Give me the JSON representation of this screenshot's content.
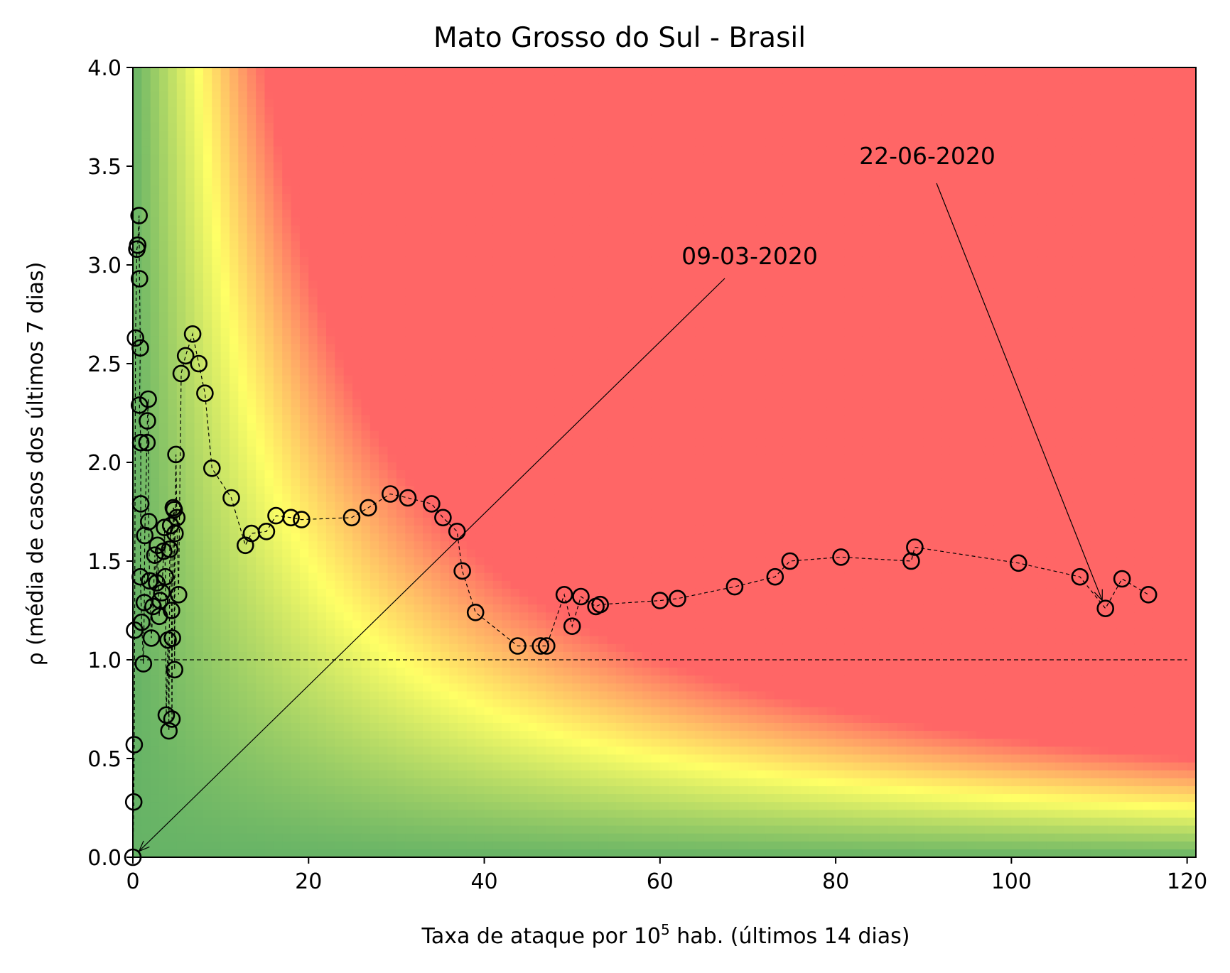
{
  "chart_data": {
    "type": "scatter",
    "title": "Mato Grosso do Sul - Brasil",
    "xlabel_main": "Taxa de ataque por 10",
    "xlabel_exp": "5",
    "xlabel_rest": " hab. (últimos 14 dias)",
    "ylabel": "ρ (média de casos dos últimos 7 dias)",
    "xlim": [
      0,
      121
    ],
    "ylim": [
      0,
      4.0
    ],
    "x_ticks": [
      0,
      20,
      40,
      60,
      80,
      100,
      120
    ],
    "y_ticks": [
      "0.0",
      "0.5",
      "1.0",
      "1.5",
      "2.0",
      "2.5",
      "3.0",
      "3.5",
      "4.0"
    ],
    "reference_line": {
      "y": 1.0,
      "x_range": [
        0,
        120
      ],
      "style": "dashed"
    },
    "background": "risk gradient: green (low) → yellow → red (high risk), by x·ρ",
    "colors": {
      "green": "#66b366",
      "yellow": "#ffff66",
      "red": "#ff6666",
      "marker_edge": "#000000"
    },
    "series": [
      {
        "points": [
          [
            0.0,
            0.0
          ],
          [
            0.1,
            0.28
          ],
          [
            0.15,
            0.57
          ],
          [
            0.2,
            1.15
          ],
          [
            0.3,
            2.63
          ],
          [
            0.45,
            3.08
          ],
          [
            0.55,
            3.1
          ],
          [
            0.7,
            3.25
          ],
          [
            0.75,
            2.93
          ],
          [
            0.85,
            2.58
          ],
          [
            0.75,
            2.29
          ],
          [
            0.9,
            2.1
          ],
          [
            0.9,
            1.79
          ],
          [
            0.85,
            1.42
          ],
          [
            1.0,
            1.19
          ],
          [
            1.2,
            0.98
          ],
          [
            1.3,
            1.29
          ],
          [
            1.35,
            1.63
          ],
          [
            1.6,
            2.1
          ],
          [
            1.65,
            2.21
          ],
          [
            1.75,
            2.32
          ],
          [
            1.8,
            1.7
          ],
          [
            1.9,
            1.4
          ],
          [
            2.1,
            1.11
          ],
          [
            2.3,
            1.27
          ],
          [
            2.5,
            1.53
          ],
          [
            2.7,
            1.39
          ],
          [
            2.8,
            1.58
          ],
          [
            3.0,
            1.22
          ],
          [
            3.1,
            1.3
          ],
          [
            3.3,
            1.34
          ],
          [
            3.5,
            1.55
          ],
          [
            3.6,
            1.67
          ],
          [
            3.7,
            1.42
          ],
          [
            3.8,
            0.72
          ],
          [
            4.0,
            1.1
          ],
          [
            4.1,
            0.64
          ],
          [
            4.2,
            1.56
          ],
          [
            4.3,
            1.68
          ],
          [
            4.4,
            1.25
          ],
          [
            4.45,
            0.7
          ],
          [
            4.5,
            1.11
          ],
          [
            4.6,
            1.77
          ],
          [
            4.7,
            1.76
          ],
          [
            4.75,
            0.95
          ],
          [
            4.8,
            1.64
          ],
          [
            4.9,
            2.04
          ],
          [
            5.0,
            1.72
          ],
          [
            5.2,
            1.33
          ],
          [
            5.5,
            2.45
          ],
          [
            6.0,
            2.54
          ],
          [
            6.8,
            2.65
          ],
          [
            7.5,
            2.5
          ],
          [
            8.2,
            2.35
          ],
          [
            9.0,
            1.97
          ],
          [
            11.2,
            1.82
          ],
          [
            12.8,
            1.58
          ],
          [
            13.5,
            1.64
          ],
          [
            15.2,
            1.65
          ],
          [
            16.3,
            1.73
          ],
          [
            18.0,
            1.72
          ],
          [
            19.2,
            1.71
          ],
          [
            24.9,
            1.72
          ],
          [
            26.8,
            1.77
          ],
          [
            29.3,
            1.84
          ],
          [
            31.3,
            1.82
          ],
          [
            34.0,
            1.79
          ],
          [
            35.3,
            1.72
          ],
          [
            36.9,
            1.65
          ],
          [
            37.5,
            1.45
          ],
          [
            39.0,
            1.24
          ],
          [
            43.8,
            1.07
          ],
          [
            46.4,
            1.07
          ],
          [
            47.1,
            1.07
          ],
          [
            49.1,
            1.33
          ],
          [
            50.0,
            1.17
          ],
          [
            51.0,
            1.32
          ],
          [
            52.7,
            1.27
          ],
          [
            53.2,
            1.28
          ],
          [
            60.0,
            1.3
          ],
          [
            62.0,
            1.31
          ],
          [
            68.5,
            1.37
          ],
          [
            73.1,
            1.42
          ],
          [
            74.8,
            1.5
          ],
          [
            80.6,
            1.52
          ],
          [
            88.6,
            1.5
          ],
          [
            89.0,
            1.57
          ],
          [
            100.8,
            1.49
          ],
          [
            107.8,
            1.42
          ],
          [
            110.7,
            1.26
          ],
          [
            112.6,
            1.41
          ],
          [
            115.6,
            1.33
          ]
        ]
      }
    ],
    "annotations": [
      {
        "text": "09-03-2020",
        "point": [
          0.0,
          0.0
        ]
      },
      {
        "text": "22-06-2020",
        "point": [
          110.7,
          1.26
        ]
      }
    ]
  }
}
